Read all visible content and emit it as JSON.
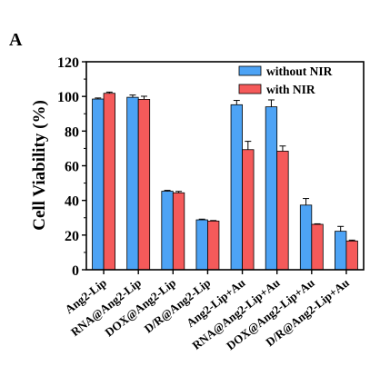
{
  "panel_label": "A",
  "chart_data": {
    "type": "bar",
    "categories": [
      "Ang2-Lip",
      "RNA@Ang2-Lip",
      "DOX@Ang2-Lip",
      "D/R@Ang2-Lip",
      "Ang2-Lip+Au",
      "RNA@Ang2-Lip+Au",
      "DOX@Ang2-Lip+Au",
      "D/R@Ang2-Lip+Au"
    ],
    "series": [
      {
        "name": "without NIR",
        "color": "#4da3f5",
        "values": [
          98.5,
          99.5,
          45.3,
          28.8,
          95.2,
          94.0,
          37.3,
          22.2
        ],
        "errors": [
          0.6,
          1.3,
          0.5,
          0.4,
          2.5,
          4.0,
          3.8,
          2.8
        ]
      },
      {
        "name": "with NIR",
        "color": "#f55a5a",
        "values": [
          101.8,
          98.3,
          44.4,
          28.1,
          69.3,
          68.4,
          26.2,
          16.6
        ],
        "errors": [
          0.7,
          1.8,
          0.8,
          0.3,
          4.8,
          3.0,
          0.3,
          0.5
        ]
      }
    ],
    "ylabel": "Cell Viability (%)",
    "xlabel": "",
    "ylim": [
      0,
      120
    ],
    "yticks": [
      0,
      20,
      40,
      60,
      80,
      100,
      120
    ],
    "grid": false,
    "legend_position": "top-right"
  }
}
